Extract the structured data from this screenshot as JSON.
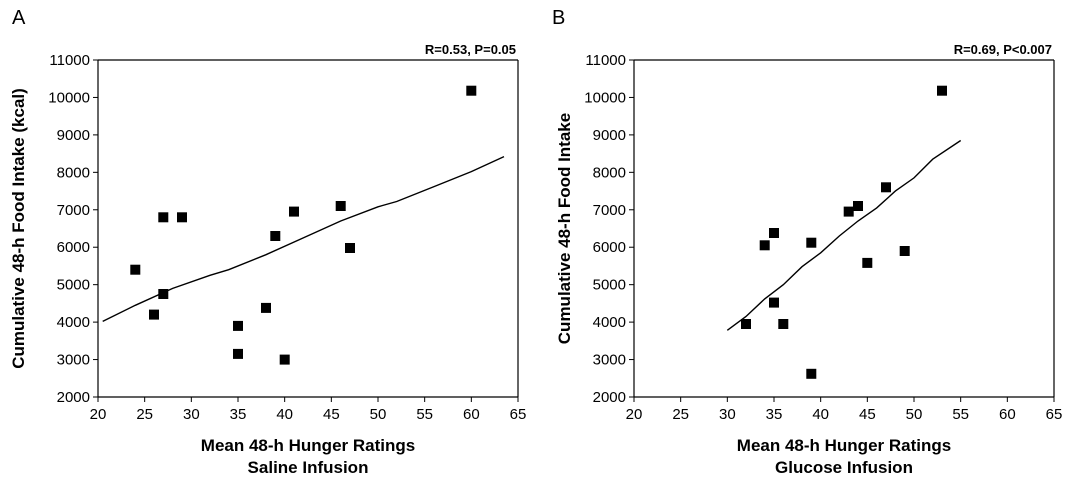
{
  "chart_data": [
    {
      "type": "scatter",
      "panel_label": "A",
      "annotation": "R=0.53, P=0.05",
      "xlabel": "Mean 48-h Hunger Ratings",
      "xlabel_sub": "Saline Infusion",
      "ylabel": "Cumulative 48-h Food Intake (kcal)",
      "xlim": [
        20,
        65
      ],
      "ylim": [
        2000,
        11000
      ],
      "xticks": [
        "20",
        "25",
        "30",
        "35",
        "40",
        "45",
        "50",
        "55",
        "60",
        "65"
      ],
      "yticks": [
        "2000",
        "3000",
        "4000",
        "5000",
        "6000",
        "7000",
        "8000",
        "9000",
        "10000",
        "11000"
      ],
      "grid": false,
      "points": [
        {
          "x": 24,
          "y": 5400
        },
        {
          "x": 26,
          "y": 4200
        },
        {
          "x": 27,
          "y": 6800
        },
        {
          "x": 27,
          "y": 4750
        },
        {
          "x": 29,
          "y": 6800
        },
        {
          "x": 35,
          "y": 3900
        },
        {
          "x": 35,
          "y": 3150
        },
        {
          "x": 38,
          "y": 4380
        },
        {
          "x": 39,
          "y": 6300
        },
        {
          "x": 40,
          "y": 3000
        },
        {
          "x": 41,
          "y": 6950
        },
        {
          "x": 46,
          "y": 7100
        },
        {
          "x": 47,
          "y": 5980
        },
        {
          "x": 60,
          "y": 10180
        }
      ],
      "fit_line": [
        {
          "x": 20.5,
          "y": 4020
        },
        {
          "x": 24,
          "y": 4450
        },
        {
          "x": 28,
          "y": 4900
        },
        {
          "x": 32,
          "y": 5250
        },
        {
          "x": 34,
          "y": 5400
        },
        {
          "x": 38,
          "y": 5800
        },
        {
          "x": 42,
          "y": 6250
        },
        {
          "x": 46,
          "y": 6700
        },
        {
          "x": 50,
          "y": 7080
        },
        {
          "x": 52,
          "y": 7220
        },
        {
          "x": 56,
          "y": 7620
        },
        {
          "x": 60,
          "y": 8020
        },
        {
          "x": 63.5,
          "y": 8420
        }
      ]
    },
    {
      "type": "scatter",
      "panel_label": "B",
      "annotation": "R=0.69, P<0.007",
      "xlabel": "Mean 48-h Hunger Ratings",
      "xlabel_sub": "Glucose Infusion",
      "ylabel": "Cumulative 48-h Food Intake",
      "xlim": [
        20,
        65
      ],
      "ylim": [
        2000,
        11000
      ],
      "xticks": [
        "20",
        "25",
        "30",
        "35",
        "40",
        "45",
        "50",
        "55",
        "60",
        "65"
      ],
      "yticks": [
        "2000",
        "3000",
        "4000",
        "5000",
        "6000",
        "7000",
        "8000",
        "9000",
        "10000",
        "11000"
      ],
      "grid": false,
      "points": [
        {
          "x": 32,
          "y": 3950
        },
        {
          "x": 34,
          "y": 6050
        },
        {
          "x": 35,
          "y": 6380
        },
        {
          "x": 35,
          "y": 4520
        },
        {
          "x": 36,
          "y": 3950
        },
        {
          "x": 39,
          "y": 6120
        },
        {
          "x": 39,
          "y": 2620
        },
        {
          "x": 43,
          "y": 6950
        },
        {
          "x": 44,
          "y": 7100
        },
        {
          "x": 45,
          "y": 5580
        },
        {
          "x": 47,
          "y": 7600
        },
        {
          "x": 49,
          "y": 5900
        },
        {
          "x": 53,
          "y": 10180
        }
      ],
      "fit_line": [
        {
          "x": 30,
          "y": 3780
        },
        {
          "x": 32,
          "y": 4150
        },
        {
          "x": 34,
          "y": 4620
        },
        {
          "x": 36,
          "y": 5000
        },
        {
          "x": 38,
          "y": 5480
        },
        {
          "x": 40,
          "y": 5850
        },
        {
          "x": 42,
          "y": 6300
        },
        {
          "x": 44,
          "y": 6700
        },
        {
          "x": 46,
          "y": 7050
        },
        {
          "x": 48,
          "y": 7500
        },
        {
          "x": 50,
          "y": 7850
        },
        {
          "x": 52,
          "y": 8350
        },
        {
          "x": 55,
          "y": 8850
        }
      ]
    }
  ]
}
